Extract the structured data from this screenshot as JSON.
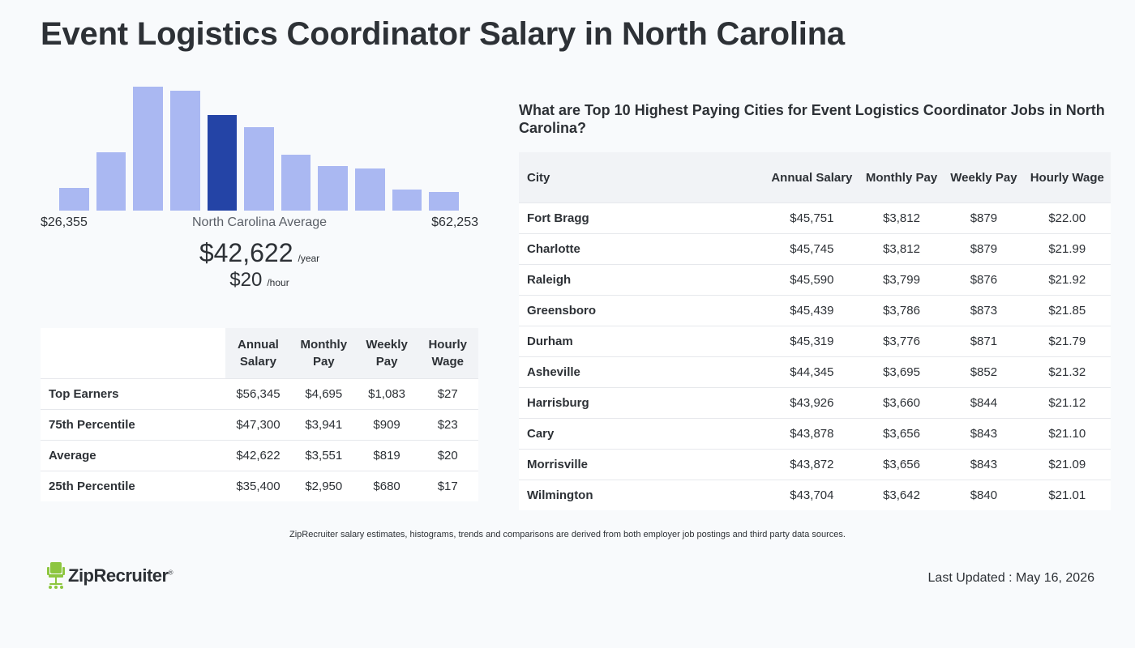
{
  "page": {
    "title": "Event Logistics Coordinator Salary in North Carolina"
  },
  "histogram": {
    "min_label": "$26,355",
    "max_label": "$62,253",
    "avg_label": "North Carolina Average",
    "bars": [
      0.18,
      0.47,
      1.0,
      0.97,
      0.77,
      0.67,
      0.45,
      0.36,
      0.34,
      0.17,
      0.15
    ],
    "active_index": 4,
    "bar_color": "#aab8f2",
    "active_color": "#2444a6"
  },
  "average": {
    "annual": "$42,622",
    "annual_unit": "/year",
    "hourly": "$20",
    "hourly_unit": "/hour"
  },
  "summary_table": {
    "headers": [
      "Annual Salary",
      "Monthly Pay",
      "Weekly Pay",
      "Hourly Wage"
    ],
    "rows": [
      {
        "label": "Top Earners",
        "values": [
          "$56,345",
          "$4,695",
          "$1,083",
          "$27"
        ]
      },
      {
        "label": "75th Percentile",
        "values": [
          "$47,300",
          "$3,941",
          "$909",
          "$23"
        ]
      },
      {
        "label": "Average",
        "values": [
          "$42,622",
          "$3,551",
          "$819",
          "$20"
        ]
      },
      {
        "label": "25th Percentile",
        "values": [
          "$35,400",
          "$2,950",
          "$680",
          "$17"
        ]
      }
    ]
  },
  "cities": {
    "title": "What are Top 10 Highest Paying Cities for Event Logistics Coordinator Jobs in North Carolina?",
    "headers": [
      "City",
      "Annual Salary",
      "Monthly Pay",
      "Weekly Pay",
      "Hourly Wage"
    ],
    "rows": [
      {
        "city": "Fort Bragg",
        "values": [
          "$45,751",
          "$3,812",
          "$879",
          "$22.00"
        ]
      },
      {
        "city": "Charlotte",
        "values": [
          "$45,745",
          "$3,812",
          "$879",
          "$21.99"
        ]
      },
      {
        "city": "Raleigh",
        "values": [
          "$45,590",
          "$3,799",
          "$876",
          "$21.92"
        ]
      },
      {
        "city": "Greensboro",
        "values": [
          "$45,439",
          "$3,786",
          "$873",
          "$21.85"
        ]
      },
      {
        "city": "Durham",
        "values": [
          "$45,319",
          "$3,776",
          "$871",
          "$21.79"
        ]
      },
      {
        "city": "Asheville",
        "values": [
          "$44,345",
          "$3,695",
          "$852",
          "$21.32"
        ]
      },
      {
        "city": "Harrisburg",
        "values": [
          "$43,926",
          "$3,660",
          "$844",
          "$21.12"
        ]
      },
      {
        "city": "Cary",
        "values": [
          "$43,878",
          "$3,656",
          "$843",
          "$21.10"
        ]
      },
      {
        "city": "Morrisville",
        "values": [
          "$43,872",
          "$3,656",
          "$843",
          "$21.09"
        ]
      },
      {
        "city": "Wilmington",
        "values": [
          "$43,704",
          "$3,642",
          "$840",
          "$21.01"
        ]
      }
    ]
  },
  "footer": {
    "note": "ZipRecruiter salary estimates, histograms, trends and comparisons are derived from both employer job postings and third party data sources.",
    "logo_text": "ZipRecruiter",
    "logo_mark": "®",
    "logo_icon": "chair-icon",
    "logo_color": "#8dc63f",
    "last_updated": "Last Updated : May 16, 2026"
  }
}
